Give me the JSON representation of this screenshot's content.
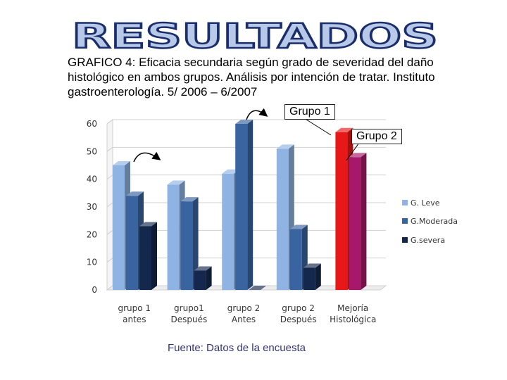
{
  "slide": {
    "title": "RESULTADOS",
    "caption_lines": [
      "GRAFICO 4: Eficacia  secundaria  según grado de severidad del daño",
      "histológico en ambos grupos. Análisis por intención de tratar. Instituto",
      "gastroenterología. 5/ 2006 – 6/2007"
    ],
    "callout_group1": "Grupo 1",
    "callout_group2": "Grupo 2",
    "source_note": "Fuente: Datos de la encuesta"
  },
  "colors": {
    "title_fill": "#b8c8e8",
    "title_stroke": "#1a2e6b",
    "leve": "#8fb4e3",
    "moderada": "#3a64a0",
    "severa": "#14284d",
    "grupo1_mejoria": "#e81818",
    "grupo2_mejoria": "#a8186a",
    "grid": "#d0d0d0"
  },
  "chart_data": {
    "type": "bar",
    "style": "3d-clustered",
    "ylim": [
      0,
      60
    ],
    "yticks": [
      "0",
      "10",
      "20",
      "30",
      "40",
      "50",
      "60"
    ],
    "grid": true,
    "legend_position": "right",
    "categories": [
      [
        "grupo 1",
        "antes"
      ],
      [
        "grupo1",
        "Después"
      ],
      [
        "grupo 2",
        "Antes"
      ],
      [
        "grupo 2",
        "Después"
      ],
      [
        "Mejoría",
        "Histológica"
      ]
    ],
    "series": [
      {
        "name": "G. Leve",
        "values": [
          45,
          38,
          42,
          51,
          null
        ]
      },
      {
        "name": "G.Moderada",
        "values": [
          34,
          32,
          60,
          22,
          null
        ]
      },
      {
        "name": "G.severa",
        "values": [
          23,
          7,
          0,
          8,
          null
        ]
      }
    ],
    "mejoria_bars": [
      {
        "group": "Grupo 1",
        "value": 57
      },
      {
        "group": "Grupo 2",
        "value": 48
      }
    ]
  }
}
